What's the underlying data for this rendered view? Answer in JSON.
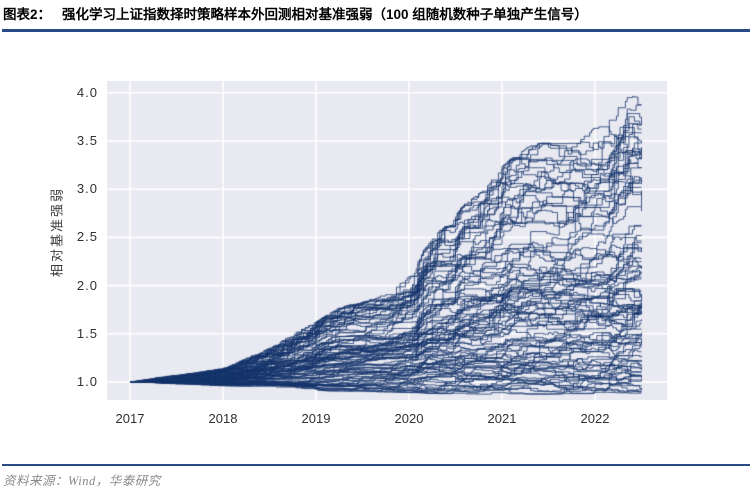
{
  "header": {
    "label": "图表2：",
    "title": "强化学习上证指数择时策略样本外回测相对基准强弱（100 组随机数种子单独产生信号）"
  },
  "footer": {
    "source": "资料来源：Wind，华泰研究"
  },
  "colors": {
    "rule_navy": "#2a4a85",
    "title_text": "#000000",
    "tick_text": "#303030",
    "source_text": "#8a8a8a"
  },
  "chart_data": {
    "type": "line",
    "title": "",
    "xlabel": "",
    "ylabel": "相对基准强弱",
    "x_unit": "year",
    "xticks": [
      2017,
      2018,
      2019,
      2020,
      2021,
      2022
    ],
    "xtick_labels": [
      "2017",
      "2018",
      "2019",
      "2020",
      "2021",
      "2022"
    ],
    "yticks": [
      1.0,
      1.5,
      2.0,
      2.5,
      3.0,
      3.5,
      4.0
    ],
    "ytick_labels": [
      "1.0",
      "1.5",
      "2.0",
      "2.5",
      "3.0",
      "3.5",
      "4.0"
    ],
    "xlim_years": [
      2016.75,
      2022.77
    ],
    "ylim": [
      0.81,
      4.12
    ],
    "grid": true,
    "legend": "none",
    "n_series": 100,
    "series_description": "100 relative-strength curves (RL timing strategy vs SSE index), each from an independent random seed; all start at 1.0 in Jan 2017; out-of-sample through mid-2022; final values spread roughly 0.9 to 3.97 with peak 3.97 in May 2022",
    "x_start_year": 2017.0,
    "x_end_year": 2022.5,
    "envelope": [
      [
        0.0,
        1.0,
        1.0
      ],
      [
        0.25,
        0.985,
        1.04
      ],
      [
        0.5,
        0.975,
        1.07
      ],
      [
        0.75,
        0.97,
        1.1
      ],
      [
        1.0,
        0.96,
        1.14
      ],
      [
        1.25,
        0.96,
        1.24
      ],
      [
        1.5,
        0.95,
        1.34
      ],
      [
        1.75,
        0.93,
        1.48
      ],
      [
        2.0,
        0.92,
        1.6
      ],
      [
        2.2,
        0.92,
        1.72
      ],
      [
        2.4,
        0.915,
        1.78
      ],
      [
        2.6,
        0.915,
        1.82
      ],
      [
        2.8,
        0.91,
        1.9
      ],
      [
        3.0,
        0.91,
        2.05
      ],
      [
        3.1,
        0.91,
        2.2
      ],
      [
        3.25,
        0.905,
        2.5
      ],
      [
        3.45,
        0.905,
        2.55
      ],
      [
        3.55,
        0.9,
        2.72
      ],
      [
        3.8,
        0.9,
        2.9
      ],
      [
        4.0,
        0.9,
        3.12
      ],
      [
        4.2,
        0.9,
        3.28
      ],
      [
        4.4,
        0.905,
        3.35
      ],
      [
        4.6,
        0.905,
        3.3
      ],
      [
        4.8,
        0.91,
        3.38
      ],
      [
        5.0,
        0.91,
        3.5
      ],
      [
        5.15,
        0.915,
        3.62
      ],
      [
        5.35,
        0.92,
        3.97
      ],
      [
        5.5,
        0.92,
        3.8
      ]
    ],
    "clusters": [
      {
        "count": 32,
        "p0": 0.0,
        "p1": 0.3
      },
      {
        "count": 42,
        "p0": 0.36,
        "p1": 0.72
      },
      {
        "count": 26,
        "p0": 0.78,
        "p1": 1.0
      }
    ],
    "event_times": [
      2.05,
      3.15,
      3.55,
      4.05,
      5.2
    ],
    "steps_per_year": 52,
    "seed": 42,
    "line_color": "#17366d",
    "line_alpha": 0.8,
    "plot_bg": "#e9e9f1",
    "grid_color": "#ffffff"
  }
}
